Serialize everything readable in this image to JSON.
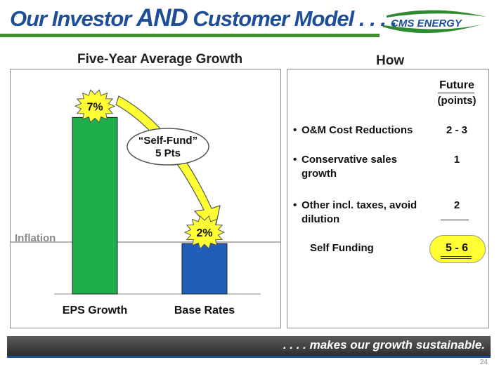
{
  "header": {
    "title_part1": "Our Investor ",
    "title_and": "AND",
    "title_part2": " Customer Model . . . .",
    "logo_text": "CMS ENERGY"
  },
  "left_panel": {
    "subtitle": "Five-Year Average Growth"
  },
  "chart_data": {
    "type": "bar",
    "categories": [
      "EPS Growth",
      "Base Rates"
    ],
    "values": [
      7,
      2
    ],
    "value_labels": [
      "7%",
      "2%"
    ],
    "reference_line": {
      "label": "Inflation"
    },
    "annotation": {
      "line1": "“Self-Fund”",
      "line2": "5 Pts"
    },
    "bar_colors": [
      "#1fae4b",
      "#1f5fb8"
    ],
    "title": "Five-Year Average Growth",
    "xlabel": "",
    "ylabel": "",
    "ylim": [
      0,
      8.4
    ]
  },
  "right_panel": {
    "subtitle": "How",
    "col_header": "Future",
    "col_subheader": "(points)",
    "items": [
      {
        "line1": "O&M Cost Reductions",
        "line2": "",
        "value": "2 - 3"
      },
      {
        "line1": "Conservative sales",
        "line2": "growth",
        "value": "1"
      },
      {
        "line1": "Other incl. taxes, avoid",
        "line2": "dilution",
        "value": "2"
      }
    ],
    "total_label": "Self Funding",
    "total_value": "5 - 6"
  },
  "footer": {
    "tagline": ". . . . makes our growth sustainable.",
    "page_number": "24"
  },
  "colors": {
    "title_blue": "#1f4e99",
    "accent_green": "#3f8f2f",
    "highlight_yellow": "#ffff33"
  }
}
